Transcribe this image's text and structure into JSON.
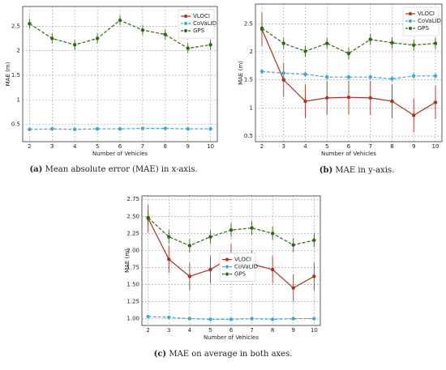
{
  "chart_data": [
    {
      "type": "line",
      "xlabel": "Number of Vehicles",
      "ylabel": "MAE (m)",
      "caption": {
        "label": "(a)",
        "text": "Mean absolute error (MAE) in x-axis."
      },
      "x": [
        2,
        3,
        4,
        5,
        6,
        7,
        8,
        9,
        10
      ],
      "xlim": [
        1.7,
        10.3
      ],
      "xticks": [
        2,
        3,
        4,
        5,
        6,
        7,
        8,
        9,
        10
      ],
      "ylim": [
        0.15,
        2.9
      ],
      "yticks": [
        0.5,
        1.0,
        1.5,
        2.0,
        2.5
      ],
      "grid": true,
      "legend": "upper right",
      "series": [
        {
          "name": "VLOCI",
          "color": "#a8321e",
          "dashed": false,
          "values": [
            null,
            null,
            null,
            null,
            null,
            null,
            null,
            null,
            null
          ],
          "errors": [
            null,
            null,
            null,
            null,
            null,
            null,
            null,
            null,
            null
          ]
        },
        {
          "name": "CoVaLID",
          "color": "#3fa7d6",
          "dashed": true,
          "values": [
            0.4,
            0.41,
            0.4,
            0.41,
            0.41,
            0.42,
            0.42,
            0.41,
            0.41
          ],
          "errors": [
            0.03,
            0.03,
            0.03,
            0.03,
            0.03,
            0.03,
            0.03,
            0.03,
            0.03
          ]
        },
        {
          "name": "GPS",
          "color": "#2f6a12",
          "dashed": true,
          "values": [
            2.55,
            2.25,
            2.12,
            2.25,
            2.62,
            2.42,
            2.33,
            2.05,
            2.12
          ],
          "errors": [
            0.1,
            0.1,
            0.1,
            0.1,
            0.1,
            0.1,
            0.1,
            0.1,
            0.1
          ]
        }
      ]
    },
    {
      "type": "line",
      "xlabel": "Number of Vehicles",
      "ylabel": "MAE (m)",
      "caption": {
        "label": "(b)",
        "text": "MAE in y-axis."
      },
      "x": [
        2,
        3,
        4,
        5,
        6,
        7,
        8,
        9,
        10
      ],
      "xlim": [
        1.7,
        10.3
      ],
      "xticks": [
        2,
        3,
        4,
        5,
        6,
        7,
        8,
        9,
        10
      ],
      "ylim": [
        0.4,
        2.85
      ],
      "yticks": [
        0.5,
        1.0,
        1.5,
        2.0,
        2.5
      ],
      "grid": true,
      "legend": "upper right",
      "series": [
        {
          "name": "VLOCI",
          "color": "#a8321e",
          "dashed": false,
          "values": [
            2.4,
            1.5,
            1.12,
            1.18,
            1.19,
            1.18,
            1.12,
            0.87,
            1.1
          ],
          "errors": [
            0.3,
            0.3,
            0.3,
            0.3,
            0.3,
            0.3,
            0.3,
            0.3,
            0.3
          ]
        },
        {
          "name": "CoVaLID",
          "color": "#3fa7d6",
          "dashed": true,
          "values": [
            1.65,
            1.62,
            1.6,
            1.55,
            1.55,
            1.55,
            1.52,
            1.57,
            1.57
          ],
          "errors": [
            0.05,
            0.05,
            0.05,
            0.05,
            0.05,
            0.05,
            0.05,
            0.05,
            0.05
          ]
        },
        {
          "name": "GPS",
          "color": "#2f6a12",
          "dashed": true,
          "values": [
            2.42,
            2.15,
            2.01,
            2.15,
            1.97,
            2.22,
            2.16,
            2.12,
            2.15
          ],
          "errors": [
            0.1,
            0.1,
            0.1,
            0.1,
            0.1,
            0.1,
            0.1,
            0.1,
            0.1
          ]
        }
      ]
    },
    {
      "type": "line",
      "xlabel": "Number of Vehicles",
      "ylabel": "MAE (m)",
      "caption": {
        "label": "(c)",
        "text": "MAE on average in both axes."
      },
      "x": [
        2,
        3,
        4,
        5,
        6,
        7,
        8,
        9,
        10
      ],
      "xlim": [
        1.7,
        10.3
      ],
      "xticks": [
        2,
        3,
        4,
        5,
        6,
        7,
        8,
        9,
        10
      ],
      "ylim": [
        0.9,
        2.8
      ],
      "yticks": [
        {
          "value": 1,
          "label": "1.00"
        },
        {
          "value": 1.25,
          "label": "1.25"
        },
        {
          "value": 1.5,
          "label": "1.50"
        },
        {
          "value": 1.75,
          "label": "1.75"
        },
        {
          "value": 2,
          "label": "2.00"
        },
        {
          "value": 2.25,
          "label": "2.25"
        },
        {
          "value": 2.5,
          "label": "2.50"
        },
        {
          "value": 2.75,
          "label": "2.75"
        }
      ],
      "grid": true,
      "legend": "center",
      "series": [
        {
          "name": "VLOCI",
          "color": "#a8321e",
          "dashed": false,
          "values": [
            2.47,
            1.87,
            1.62,
            1.72,
            1.9,
            1.8,
            1.72,
            1.45,
            1.62
          ],
          "errors": [
            0.2,
            0.2,
            0.2,
            0.2,
            0.2,
            0.2,
            0.2,
            0.2,
            0.2
          ]
        },
        {
          "name": "CoVaLID",
          "color": "#3fa7d6",
          "dashed": true,
          "values": [
            1.03,
            1.02,
            1.0,
            0.99,
            0.99,
            1.0,
            0.99,
            1.0,
            1.0
          ],
          "errors": [
            0.02,
            0.02,
            0.02,
            0.02,
            0.02,
            0.02,
            0.02,
            0.02,
            0.02
          ]
        },
        {
          "name": "GPS",
          "color": "#2f6a12",
          "dashed": true,
          "values": [
            2.48,
            2.2,
            2.07,
            2.2,
            2.3,
            2.33,
            2.25,
            2.08,
            2.15
          ],
          "errors": [
            0.1,
            0.1,
            0.1,
            0.1,
            0.1,
            0.1,
            0.1,
            0.1,
            0.1
          ]
        }
      ]
    }
  ]
}
